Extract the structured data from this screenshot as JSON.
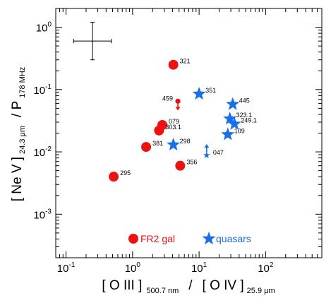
{
  "colors": {
    "fr2": "#ee1111",
    "quasar": "#1a6fe6",
    "axis": "#000000"
  },
  "chart_data": {
    "type": "scatter",
    "xscale": "log",
    "yscale": "log",
    "xlim": [
      0.07,
      700
    ],
    "ylim": [
      0.0002,
      2
    ],
    "x_ticks": [
      {
        "value": 0.1,
        "label": "10",
        "exp": "-1"
      },
      {
        "value": 1,
        "label": "10",
        "exp": "0"
      },
      {
        "value": 10,
        "label": "10",
        "exp": "1"
      },
      {
        "value": 100,
        "label": "10",
        "exp": "2"
      }
    ],
    "y_ticks": [
      {
        "value": 0.001,
        "label": "10",
        "exp": "-3"
      },
      {
        "value": 0.01,
        "label": "10",
        "exp": "-2"
      },
      {
        "value": 0.1,
        "label": "10",
        "exp": "-1"
      },
      {
        "value": 1,
        "label": "10",
        "exp": "0"
      }
    ],
    "xlabel": {
      "part1": "[ O III ]",
      "sub1": "500.7 nm",
      "sep": "/",
      "part2": "[ O IV ]",
      "sub2": "25.9 μm"
    },
    "ylabel": {
      "part1": "[ Ne V ]",
      "sub1": "24.3 μm",
      "sep": "/ P",
      "sub2": "178 MHz"
    },
    "error_bar": {
      "x": 0.25,
      "y": 0.6,
      "x_range": [
        0.13,
        0.48
      ],
      "y_range": [
        0.3,
        1.2
      ]
    },
    "series": [
      {
        "name": "FR2 gal",
        "marker": "circle",
        "points": [
          {
            "label": "321",
            "x": 4.1,
            "y": 0.25
          },
          {
            "label": "079",
            "x": 2.8,
            "y": 0.027
          },
          {
            "label": "303.1",
            "x": 2.5,
            "y": 0.022
          },
          {
            "label": "381",
            "x": 1.6,
            "y": 0.012
          },
          {
            "label": "356",
            "x": 5.2,
            "y": 0.006
          },
          {
            "label": "295",
            "x": 0.52,
            "y": 0.004
          }
        ],
        "upper_limits": [
          {
            "label": "459",
            "x": 4.8,
            "y": 0.065
          }
        ]
      },
      {
        "name": "quasars",
        "marker": "star",
        "points": [
          {
            "label": "351",
            "x": 10,
            "y": 0.085
          },
          {
            "label": "445",
            "x": 32,
            "y": 0.058
          },
          {
            "label": "323.1",
            "x": 29,
            "y": 0.034
          },
          {
            "label": "249.1",
            "x": 34,
            "y": 0.028
          },
          {
            "label": "109",
            "x": 27,
            "y": 0.019
          },
          {
            "label": "298",
            "x": 4.1,
            "y": 0.013
          }
        ],
        "lower_limits": [
          {
            "label": "047",
            "x": 13,
            "y": 0.0088
          }
        ]
      }
    ],
    "legend": [
      {
        "label": "FR2 gal",
        "marker": "circle"
      },
      {
        "label": "quasars",
        "marker": "star"
      }
    ]
  }
}
